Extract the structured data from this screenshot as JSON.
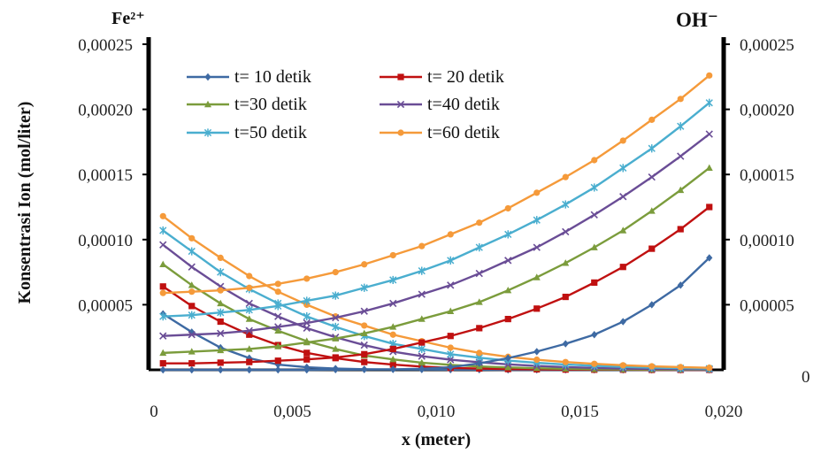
{
  "chart_data": {
    "type": "line",
    "title": "",
    "xlabel": "x (meter)",
    "ylabel": "Konsentrasi Ion (mol/liter)",
    "left_axis_title": "Fe²⁺",
    "right_axis_title": "OH⁻",
    "xlim": [
      0,
      0.02
    ],
    "ylim": [
      0,
      0.00025
    ],
    "x_ticks": [
      0.0,
      0.005,
      0.01,
      0.015,
      0.02
    ],
    "x_tick_labels": [
      "0",
      "0,005",
      "0,010",
      "0,015",
      "0,020"
    ],
    "y_ticks": [
      5e-05,
      0.0001,
      0.00015,
      0.0002,
      0.00025
    ],
    "y_tick_labels_left": [
      "0,00005",
      "0,00010",
      "0,00015",
      "0,00020",
      "0,00025"
    ],
    "y_tick_labels_right": [
      "0,00005",
      "0,00010",
      "0,00015",
      "0,00020",
      "0,00025"
    ],
    "right_zero_label": "0",
    "x": [
      0.0005,
      0.0015,
      0.0025,
      0.0035,
      0.0045,
      0.0055,
      0.0065,
      0.0075,
      0.0085,
      0.0095,
      0.0105,
      0.0115,
      0.0125,
      0.0135,
      0.0145,
      0.0155,
      0.0165,
      0.0175,
      0.0185,
      0.0195
    ],
    "legend_position": "top-center",
    "grid": false,
    "series": [
      {
        "name": "t= 10 detik",
        "color": "#3e6aa3",
        "marker": "diamond",
        "group": "Fe2+",
        "values": [
          4.3e-05,
          2.9e-05,
          1.7e-05,
          9e-06,
          4e-06,
          2e-06,
          1e-06,
          5e-07,
          3e-07,
          2e-07,
          1e-07,
          1e-07,
          0.0,
          0.0,
          0.0,
          0.0,
          0.0,
          0.0,
          0.0,
          0.0
        ]
      },
      {
        "name": "t= 20 detik",
        "color": "#c01010",
        "marker": "square",
        "group": "Fe2+",
        "values": [
          6.4e-05,
          4.9e-05,
          3.7e-05,
          2.7e-05,
          1.9e-05,
          1.3e-05,
          9e-06,
          6e-06,
          4e-06,
          2.5e-06,
          1.5e-06,
          1e-06,
          6e-07,
          4e-07,
          2e-07,
          1e-07,
          1e-07,
          0.0,
          0.0,
          0.0
        ]
      },
      {
        "name": "t=30 detik",
        "color": "#7b9c3c",
        "marker": "triangle",
        "group": "Fe2+",
        "values": [
          8.1e-05,
          6.5e-05,
          5.1e-05,
          3.9e-05,
          3e-05,
          2.2e-05,
          1.6e-05,
          1.1e-05,
          8e-06,
          5.5e-06,
          3.8e-06,
          2.6e-06,
          1.8e-06,
          1.2e-06,
          8e-07,
          5e-07,
          3e-07,
          2e-07,
          1e-07,
          1e-07
        ]
      },
      {
        "name": "t=40 detik",
        "color": "#6a4d96",
        "marker": "x",
        "group": "Fe2+",
        "values": [
          9.6e-05,
          7.9e-05,
          6.4e-05,
          5.1e-05,
          4.1e-05,
          3.2e-05,
          2.5e-05,
          1.9e-05,
          1.4e-05,
          1.05e-05,
          7.8e-06,
          5.8e-06,
          4.2e-06,
          3e-06,
          2.1e-06,
          1.5e-06,
          1e-06,
          7e-07,
          5e-07,
          4e-07
        ]
      },
      {
        "name": "t=50 detik",
        "color": "#4aaecf",
        "marker": "star",
        "group": "Fe2+",
        "values": [
          0.000107,
          9.1e-05,
          7.5e-05,
          6.2e-05,
          5.1e-05,
          4.1e-05,
          3.3e-05,
          2.6e-05,
          2e-05,
          1.6e-05,
          1.2e-05,
          9.3e-06,
          7.1e-06,
          5.4e-06,
          4.1e-06,
          3.1e-06,
          2.3e-06,
          1.7e-06,
          1.3e-06,
          1e-06
        ]
      },
      {
        "name": "t=60 detik",
        "color": "#f59a3a",
        "marker": "circle",
        "group": "Fe2+",
        "values": [
          0.000118,
          0.000101,
          8.6e-05,
          7.2e-05,
          6e-05,
          5e-05,
          4.1e-05,
          3.4e-05,
          2.7e-05,
          2.2e-05,
          1.7e-05,
          1.3e-05,
          1e-05,
          7.8e-06,
          6e-06,
          4.6e-06,
          3.5e-06,
          2.7e-06,
          2.1e-06,
          1.6e-06
        ]
      },
      {
        "name": "",
        "color": "#3e6aa3",
        "marker": "diamond",
        "group": "OH-",
        "values": [
          0.0,
          0.0,
          0.0,
          0.0,
          0.0,
          0.0,
          1e-07,
          2e-07,
          4e-07,
          8e-07,
          2e-06,
          5e-06,
          9e-06,
          1.4e-05,
          2e-05,
          2.7e-05,
          3.7e-05,
          5e-05,
          6.5e-05,
          8.6e-05
        ]
      },
      {
        "name": "",
        "color": "#c01010",
        "marker": "square",
        "group": "OH-",
        "values": [
          5e-06,
          5e-06,
          5.5e-06,
          6e-06,
          7e-06,
          8e-06,
          9.5e-06,
          1.2e-05,
          1.6e-05,
          2.1e-05,
          2.6e-05,
          3.2e-05,
          3.9e-05,
          4.7e-05,
          5.6e-05,
          6.7e-05,
          7.9e-05,
          9.3e-05,
          0.000108,
          0.000125
        ]
      },
      {
        "name": "",
        "color": "#7b9c3c",
        "marker": "triangle",
        "group": "OH-",
        "values": [
          1.3e-05,
          1.4e-05,
          1.5e-05,
          1.6e-05,
          1.8e-05,
          2.1e-05,
          2.4e-05,
          2.8e-05,
          3.3e-05,
          3.9e-05,
          4.5e-05,
          5.2e-05,
          6.1e-05,
          7.1e-05,
          8.2e-05,
          9.4e-05,
          0.000107,
          0.000122,
          0.000138,
          0.000155
        ]
      },
      {
        "name": "",
        "color": "#6a4d96",
        "marker": "x",
        "group": "OH-",
        "values": [
          2.6e-05,
          2.7e-05,
          2.8e-05,
          3e-05,
          3.3e-05,
          3.6e-05,
          4e-05,
          4.5e-05,
          5.1e-05,
          5.8e-05,
          6.5e-05,
          7.4e-05,
          8.4e-05,
          9.4e-05,
          0.000106,
          0.000119,
          0.000133,
          0.000148,
          0.000164,
          0.000181
        ]
      },
      {
        "name": "",
        "color": "#4aaecf",
        "marker": "star",
        "group": "OH-",
        "values": [
          4.1e-05,
          4.2e-05,
          4.4e-05,
          4.6e-05,
          4.9e-05,
          5.3e-05,
          5.7e-05,
          6.3e-05,
          6.9e-05,
          7.6e-05,
          8.4e-05,
          9.4e-05,
          0.000104,
          0.000115,
          0.000127,
          0.00014,
          0.000155,
          0.00017,
          0.000187,
          0.000205
        ]
      },
      {
        "name": "",
        "color": "#f59a3a",
        "marker": "circle",
        "group": "OH-",
        "values": [
          5.9e-05,
          6e-05,
          6.1e-05,
          6.3e-05,
          6.6e-05,
          7e-05,
          7.5e-05,
          8.1e-05,
          8.8e-05,
          9.5e-05,
          0.000104,
          0.000113,
          0.000124,
          0.000136,
          0.000148,
          0.000161,
          0.000176,
          0.000192,
          0.000208,
          0.000226
        ]
      }
    ]
  }
}
